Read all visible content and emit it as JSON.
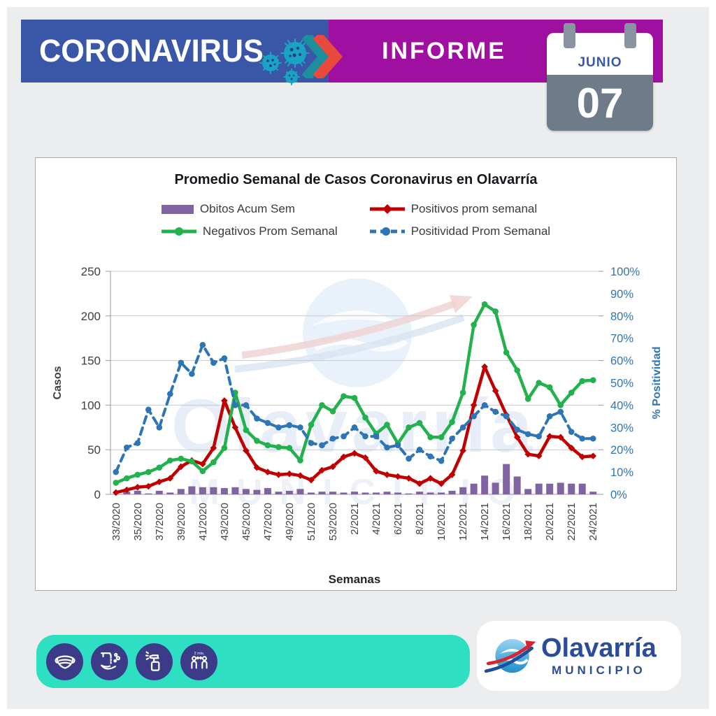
{
  "header": {
    "title": "CORONAVIRUS",
    "subtitle": "INFORME",
    "calendar": {
      "month": "JUNIO",
      "day": "07"
    }
  },
  "watermark": {
    "name": "Olavarría",
    "sub": "MUNICIPIO"
  },
  "chart_data": {
    "type": "bar+line combo, dual axis",
    "title": "Promedio Semanal de Casos Coronavirus en Olavarría",
    "xlabel": "Semanas",
    "ylabel_left": "Casos",
    "ylabel_right": "% Positividad",
    "ylim_left": [
      0,
      250
    ],
    "ylim_right_pct": [
      0,
      100
    ],
    "yticks_left": [
      0,
      50,
      100,
      150,
      200,
      250
    ],
    "yticks_right": [
      "0%",
      "10%",
      "20%",
      "30%",
      "40%",
      "50%",
      "60%",
      "70%",
      "80%",
      "90%",
      "100%"
    ],
    "x_tick_labels": [
      "33/2020",
      "35/2020",
      "37/2020",
      "39/2020",
      "41/2020",
      "43/2020",
      "45/2020",
      "47/2020",
      "49/2020",
      "51/2020",
      "53/2020",
      "2/2021",
      "4/2021",
      "6/2021",
      "8/2021",
      "10/2021",
      "12/2021",
      "14/2021",
      "16/2021",
      "18/2021",
      "20/2021",
      "22/2021",
      "24/2021"
    ],
    "points_per_tick": 2,
    "grid": "horizontal gridlines only",
    "legend_position": "top",
    "series": [
      {
        "name": "Obitos Acum Sem",
        "type": "bar",
        "marker": "none",
        "axis": "left",
        "color": "#8064A2",
        "values": [
          0,
          3,
          4,
          1,
          4,
          2,
          6,
          9,
          8,
          8,
          7,
          8,
          6,
          5,
          7,
          3,
          4,
          6,
          2,
          3,
          3,
          2,
          3,
          2,
          2,
          3,
          2,
          1,
          3,
          2,
          2,
          4,
          8,
          12,
          21,
          13,
          34,
          20,
          6,
          12,
          12,
          13,
          12,
          12,
          3
        ]
      },
      {
        "name": "Positivos prom semanal",
        "type": "line",
        "marker": "diamond",
        "axis": "left",
        "color": "#C00000",
        "values": [
          2,
          5,
          8,
          9,
          14,
          18,
          31,
          38,
          34,
          52,
          105,
          75,
          49,
          30,
          25,
          22,
          23,
          21,
          16,
          27,
          31,
          42,
          46,
          41,
          26,
          22,
          20,
          18,
          12,
          18,
          12,
          22,
          49,
          100,
          143,
          116,
          89,
          64,
          45,
          43,
          65,
          64,
          52,
          42,
          43
        ]
      },
      {
        "name": "Negativos Prom Semanal",
        "type": "line",
        "marker": "circle",
        "axis": "left",
        "color": "#22B14C",
        "values": [
          13,
          18,
          22,
          25,
          30,
          38,
          40,
          37,
          26,
          36,
          52,
          114,
          72,
          60,
          55,
          53,
          52,
          38,
          78,
          100,
          93,
          110,
          108,
          86,
          68,
          78,
          57,
          75,
          80,
          64,
          64,
          81,
          114,
          190,
          213,
          205,
          159,
          139,
          107,
          125,
          120,
          100,
          114,
          127,
          128
        ]
      },
      {
        "name": "Positividad Prom Semanal",
        "type": "line-dashed",
        "marker": "circle",
        "axis": "right",
        "color": "#2E75B6",
        "values": [
          10,
          21,
          23,
          38,
          30,
          45,
          59,
          54,
          67,
          59,
          61,
          40,
          40,
          34,
          32,
          30,
          31,
          30,
          23,
          22,
          25,
          26,
          30,
          26,
          26,
          21,
          22,
          16,
          20,
          17,
          15,
          25,
          30,
          35,
          40,
          37,
          35,
          29,
          27,
          26,
          35,
          37,
          28,
          25,
          25
        ]
      }
    ]
  },
  "footer": {
    "icons": [
      "face-mask-icon",
      "hand-washing-icon",
      "disinfectant-spray-icon",
      "social-distance-icon"
    ],
    "distance_label": "2 mts.",
    "logo": {
      "name": "Olavarría",
      "sub": "MUNICIPIO"
    }
  },
  "colors": {
    "header_blue": "#3A57A7",
    "header_purple": "#A010A0",
    "calendar_body_gray": "#6E7B89",
    "teal_bar": "#2EE0C2",
    "icon_navy": "#3B3B8A",
    "logo_blue": "#2B4C9B",
    "logo_red": "#D6252E",
    "bars_purple": "#8064A2",
    "line_red": "#C00000",
    "line_green": "#22B14C",
    "line_blue": "#2E75B6",
    "right_axis_text": "#2E75B6"
  }
}
